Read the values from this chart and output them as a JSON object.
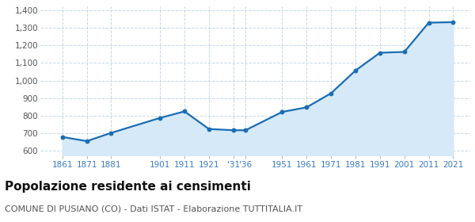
{
  "years": [
    1861,
    1871,
    1881,
    1901,
    1911,
    1921,
    1931,
    1936,
    1951,
    1961,
    1971,
    1981,
    1991,
    2001,
    2011,
    2021
  ],
  "population": [
    680,
    656,
    703,
    788,
    825,
    725,
    718,
    718,
    822,
    848,
    928,
    1057,
    1158,
    1163,
    1329,
    1332
  ],
  "line_color": "#1b6db5",
  "fill_color": "#d6e9f8",
  "marker_color": "#1b6db5",
  "bg_color": "#ffffff",
  "grid_color": "#c5d8e8",
  "ylim": [
    575,
    1420
  ],
  "yticks": [
    600,
    700,
    800,
    900,
    1000,
    1100,
    1200,
    1300,
    1400
  ],
  "xlim": [
    1852,
    2028
  ],
  "x_tick_positions": [
    1861,
    1871,
    1881,
    1901,
    1911,
    1921,
    1931,
    1936,
    1951,
    1961,
    1971,
    1981,
    1991,
    2001,
    2011,
    2021
  ],
  "x_tick_labels": [
    "1861",
    "1871",
    "1881",
    "1901",
    "1911",
    "1921",
    "'31",
    "'36",
    "1951",
    "1961",
    "1971",
    "1981",
    "1991",
    "2001",
    "2011",
    "2021"
  ],
  "title": "Popolazione residente ai censimenti",
  "subtitle": "COMUNE DI PUSIANO (CO) - Dati ISTAT - Elaborazione TUTTITALIA.IT",
  "title_fontsize": 11,
  "subtitle_fontsize": 8,
  "fill_bottom": 575
}
